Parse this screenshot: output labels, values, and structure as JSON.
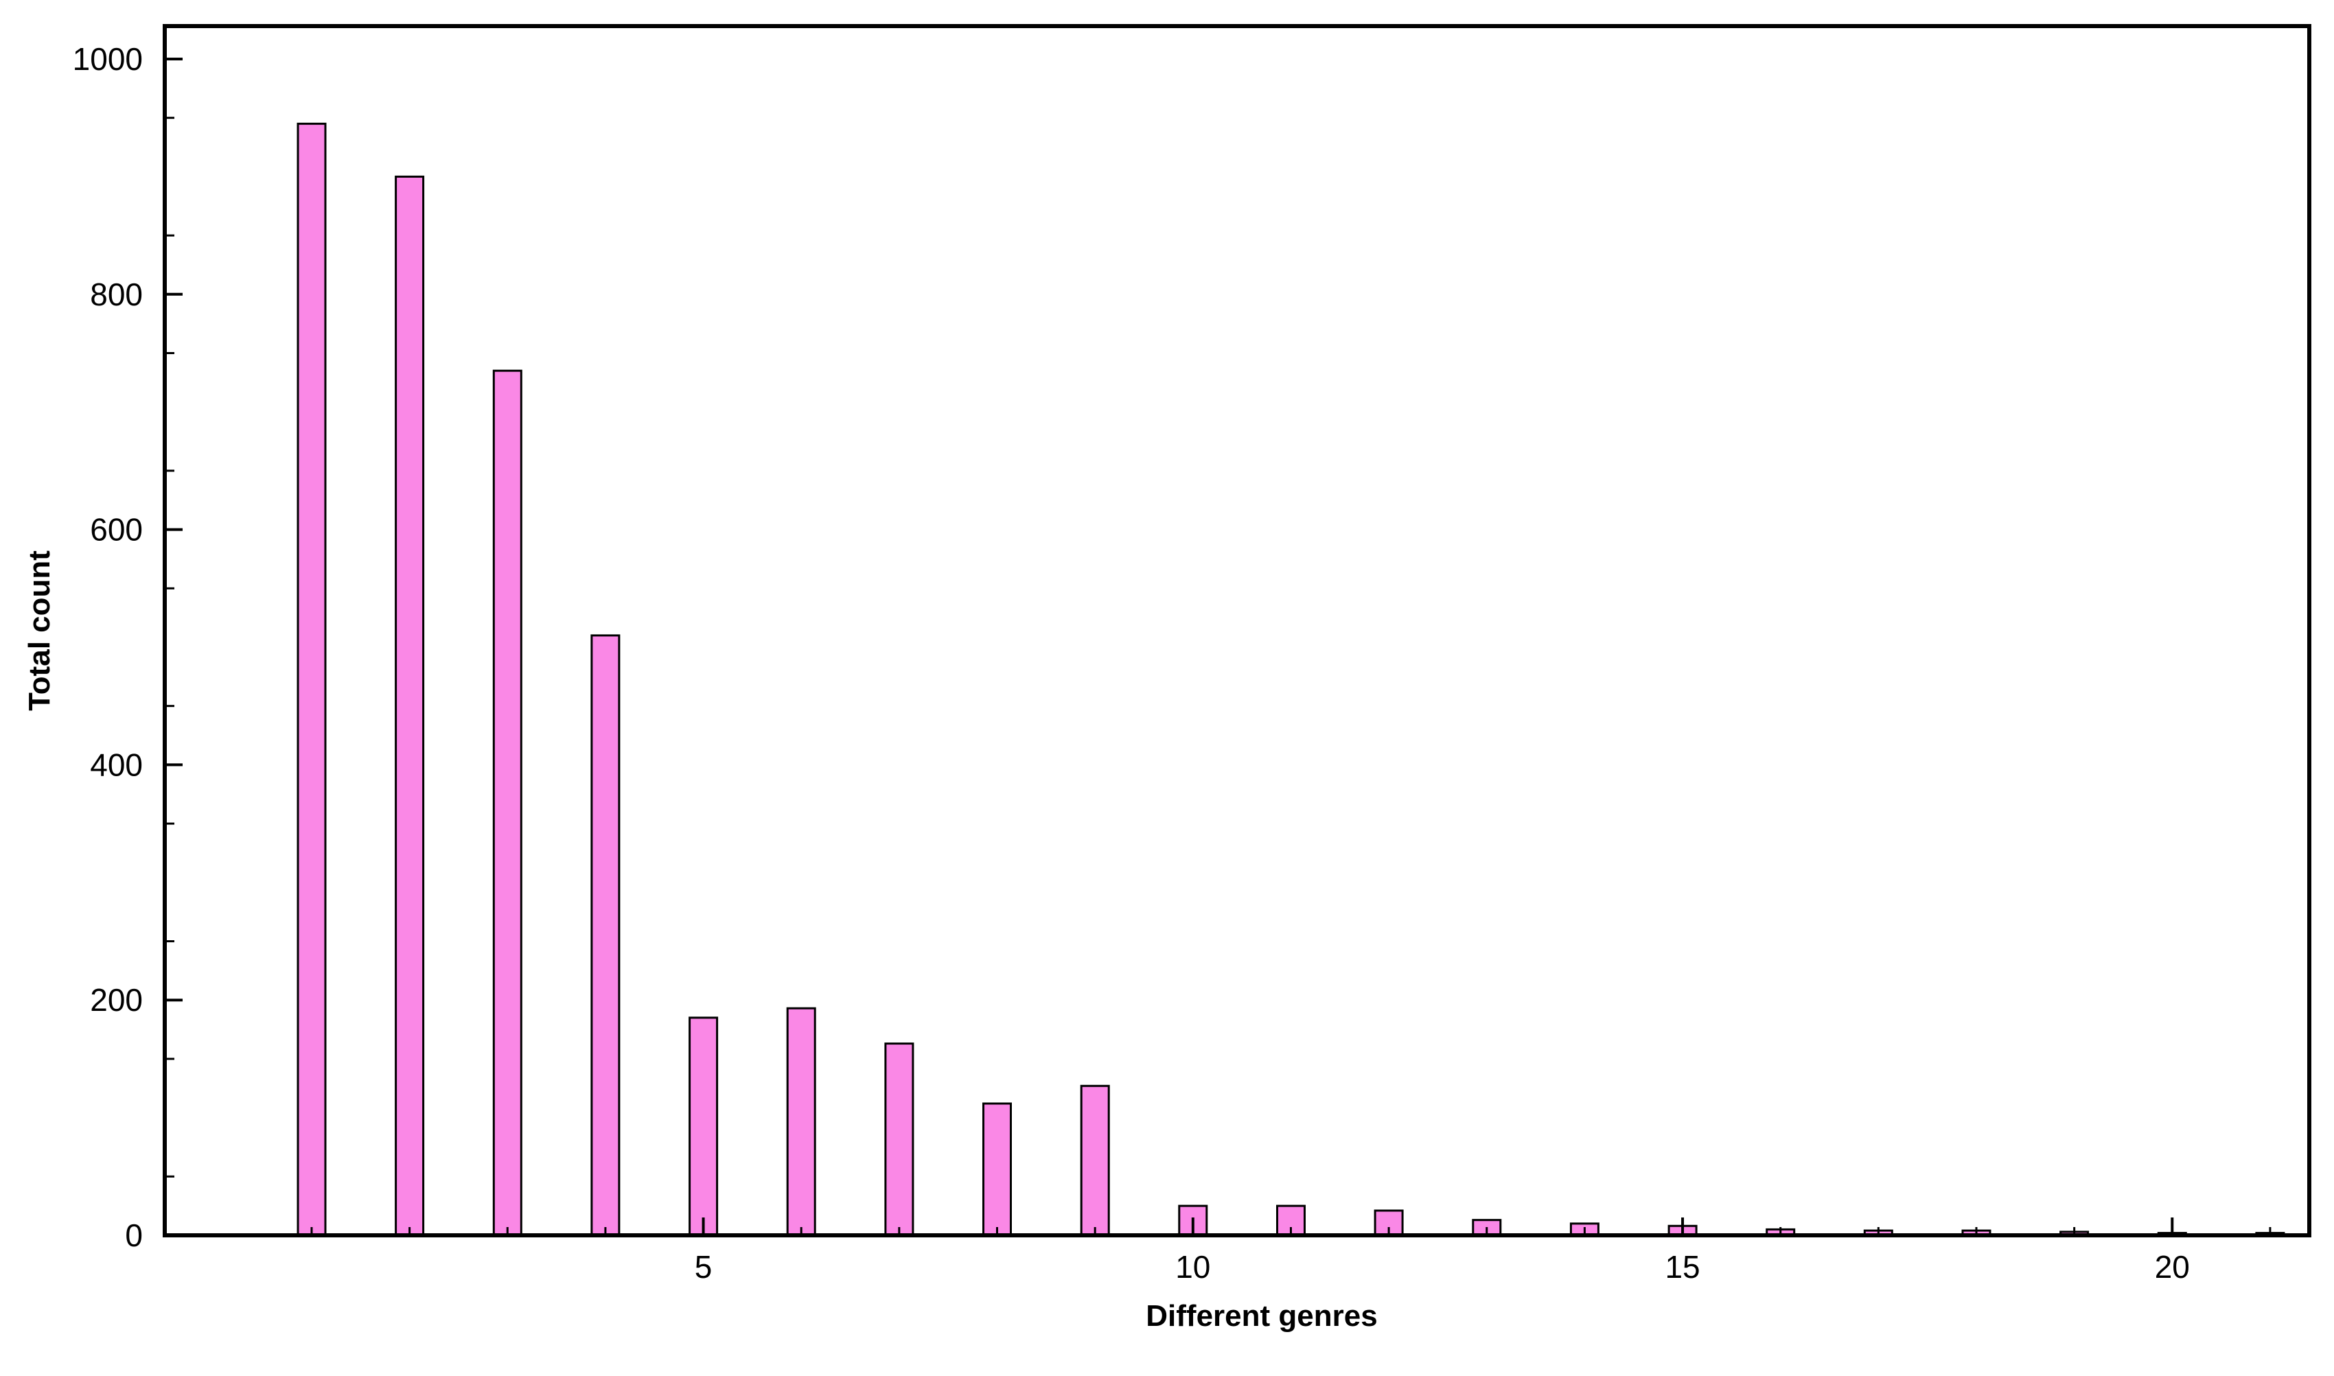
{
  "chart_data": {
    "type": "bar",
    "title": "",
    "xlabel": "Different genres",
    "ylabel": "Total count",
    "x": [
      1,
      2,
      3,
      4,
      5,
      6,
      7,
      8,
      9,
      10,
      11,
      12,
      13,
      14,
      15,
      16,
      17,
      18,
      19,
      20,
      21
    ],
    "values": [
      945,
      900,
      735,
      510,
      185,
      193,
      163,
      112,
      127,
      25,
      25,
      21,
      13,
      10,
      8,
      5,
      4,
      4,
      3,
      2,
      2
    ],
    "xlim": [
      -0.5,
      21.4
    ],
    "ylim": [
      0,
      1028
    ],
    "x_ticks": [
      "5",
      "10",
      "15",
      "20"
    ],
    "y_ticks": [
      "0",
      "200",
      "400",
      "600",
      "800",
      "1000"
    ],
    "grid": false,
    "legend": "none",
    "bar_color": "#fa88e6",
    "edge_color": "#000000"
  }
}
